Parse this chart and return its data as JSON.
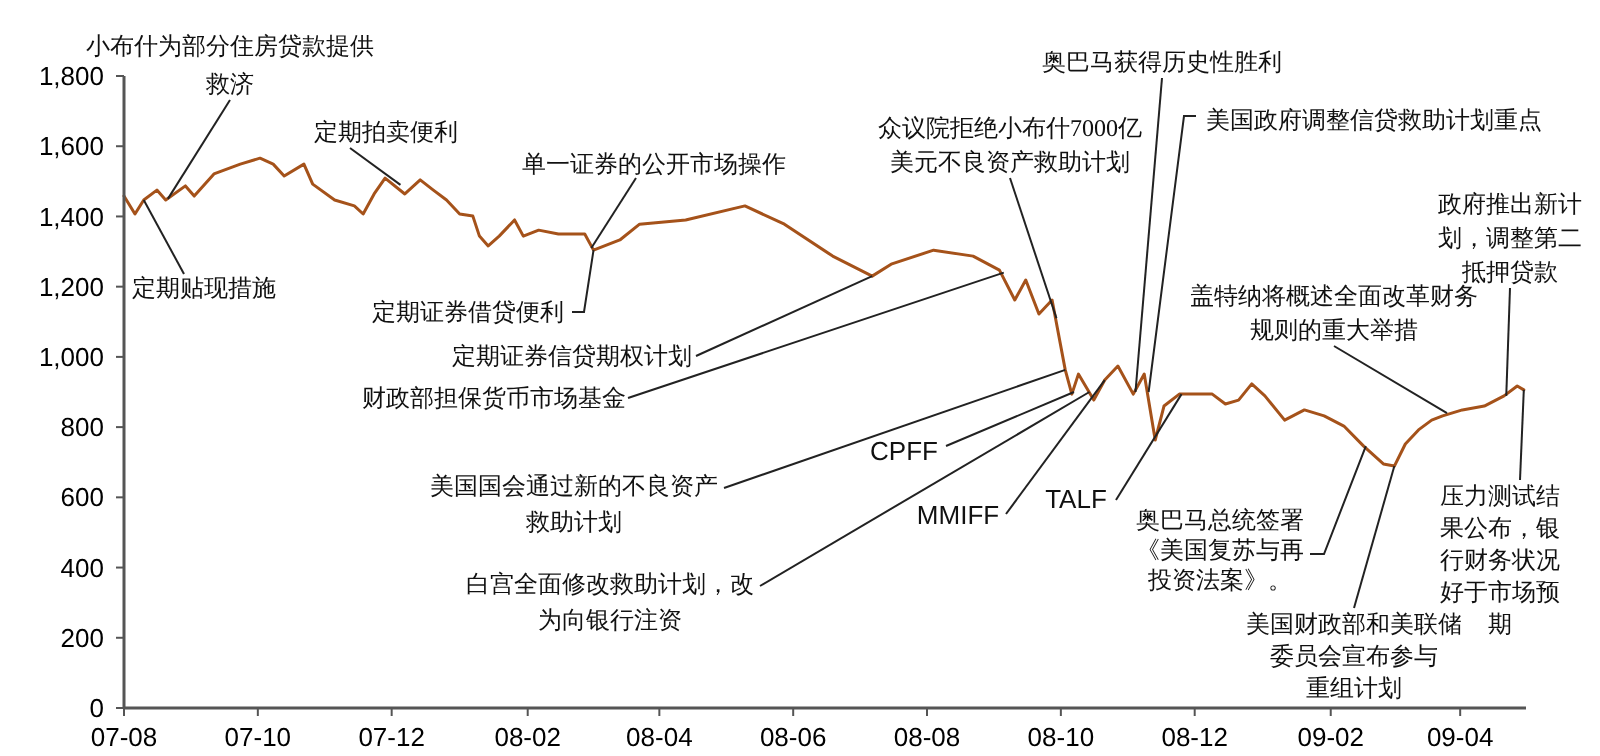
{
  "chart_data": {
    "type": "line",
    "x": [
      "2007-08-01",
      "2007-08-06",
      "2007-08-10",
      "2007-08-16",
      "2007-08-20",
      "2007-08-29",
      "2007-09-02",
      "2007-09-11",
      "2007-09-23",
      "2007-10-02",
      "2007-10-08",
      "2007-10-13",
      "2007-10-22",
      "2007-10-26",
      "2007-11-05",
      "2007-11-14",
      "2007-11-18",
      "2007-11-23",
      "2007-11-28",
      "2007-12-07",
      "2007-12-14",
      "2007-12-20",
      "2007-12-26",
      "2008-01-01",
      "2008-01-07",
      "2008-01-10",
      "2008-01-14",
      "2008-01-19",
      "2008-01-26",
      "2008-01-30",
      "2008-02-06",
      "2008-02-15",
      "2008-02-27",
      "2008-03-02",
      "2008-03-14",
      "2008-03-23",
      "2008-04-13",
      "2008-05-10",
      "2008-05-28",
      "2008-06-19",
      "2008-07-07",
      "2008-07-16",
      "2008-08-04",
      "2008-08-22",
      "2008-09-03",
      "2008-09-10",
      "2008-09-15",
      "2008-09-21",
      "2008-09-27",
      "2008-10-03",
      "2008-10-06",
      "2008-10-09",
      "2008-10-16",
      "2008-10-21",
      "2008-10-27",
      "2008-11-03",
      "2008-11-08",
      "2008-11-13",
      "2008-11-17",
      "2008-11-24",
      "2008-11-30",
      "2008-12-09",
      "2008-12-15",
      "2008-12-21",
      "2008-12-27",
      "2009-01-02",
      "2009-01-11",
      "2009-01-20",
      "2009-01-29",
      "2009-02-07",
      "2009-02-16",
      "2009-02-25",
      "2009-03-02",
      "2009-03-07",
      "2009-03-13",
      "2009-03-19",
      "2009-03-24",
      "2009-04-02",
      "2009-04-12",
      "2009-04-21",
      "2009-04-27",
      "2009-04-30"
    ],
    "series": [
      {
        "color": "#a5521a",
        "values": [
          1458,
          1407,
          1447,
          1475,
          1447,
          1487,
          1458,
          1521,
          1549,
          1566,
          1549,
          1515,
          1549,
          1492,
          1447,
          1430,
          1407,
          1464,
          1509,
          1464,
          1504,
          1475,
          1447,
          1407,
          1401,
          1344,
          1316,
          1344,
          1390,
          1344,
          1361,
          1350,
          1350,
          1304,
          1333,
          1378,
          1390,
          1430,
          1378,
          1287,
          1230,
          1265,
          1304,
          1287,
          1247,
          1162,
          1219,
          1122,
          1162,
          963,
          894,
          951,
          877,
          934,
          974,
          894,
          951,
          763,
          860,
          894,
          894,
          894,
          866,
          877,
          923,
          889,
          820,
          849,
          832,
          803,
          746,
          695,
          689,
          752,
          792,
          820,
          832,
          849,
          860,
          889,
          917,
          906
        ]
      }
    ],
    "xlim": [
      "2007-08-01",
      "2009-05-01"
    ],
    "xticks": [
      {
        "value": "2007-08-01",
        "label": "07-08"
      },
      {
        "value": "2007-10-01",
        "label": "07-10"
      },
      {
        "value": "2007-12-01",
        "label": "07-12"
      },
      {
        "value": "2008-02-01",
        "label": "08-02"
      },
      {
        "value": "2008-04-01",
        "label": "08-04"
      },
      {
        "value": "2008-06-01",
        "label": "08-06"
      },
      {
        "value": "2008-08-01",
        "label": "08-08"
      },
      {
        "value": "2008-10-01",
        "label": "08-10"
      },
      {
        "value": "2008-12-01",
        "label": "08-12"
      },
      {
        "value": "2009-02-01",
        "label": "09-02"
      },
      {
        "value": "2009-04-01",
        "label": "09-04"
      }
    ],
    "ylim": [
      0,
      1800
    ],
    "yticks": [
      0,
      200,
      400,
      600,
      800,
      {
        "value": 1000,
        "label": "1,000"
      },
      {
        "value": 1200,
        "label": "1,200"
      },
      {
        "value": 1400,
        "label": "1,400"
      },
      {
        "value": 1600,
        "label": "1,600"
      },
      {
        "value": 1800,
        "label": "1,800"
      }
    ],
    "annotations": [
      {
        "text": "小布什为部分住房贷款提供救济",
        "x": "2007-08-21",
        "y": 1450
      },
      {
        "text": "定期拍卖便利",
        "x": "2007-12-05",
        "y": 1490
      },
      {
        "text": "定期贴现措施",
        "x": "2007-08-10",
        "y": 1447
      },
      {
        "text": "单一证券的公开市场操作",
        "x": "2008-03-01",
        "y": 1310
      },
      {
        "text": "定期证券借贷便利",
        "x": "2008-03-02",
        "y": 1304
      },
      {
        "text": "定期证券信贷期权计划",
        "x": "2008-07-07",
        "y": 1230
      },
      {
        "text": "财政部担保货币市场基金",
        "x": "2008-09-05",
        "y": 1240
      },
      {
        "text": "CPFF",
        "x": "2008-10-07",
        "y": 900
      },
      {
        "text": "美国国会通过新的不良资产救助计划",
        "x": "2008-10-03",
        "y": 963
      },
      {
        "text": "白宫全面修改救助计划，改为向银行注资",
        "x": "2008-10-14",
        "y": 900
      },
      {
        "text": "MMIFF",
        "x": "2008-10-21",
        "y": 934
      },
      {
        "text": "TALF",
        "x": "2008-11-25",
        "y": 894
      },
      {
        "text": "奥巴马获得历史性胜利",
        "x": "2008-11-04",
        "y": 900
      },
      {
        "text": "美国政府调整信贷救助计划重点",
        "x": "2008-11-10",
        "y": 900
      },
      {
        "text": "盖特纳将概述全面改革财务规则的重大举措",
        "x": "2009-03-26",
        "y": 840
      },
      {
        "text": "政府推出新计划，调整第二抵押贷款",
        "x": "2009-04-22",
        "y": 889
      },
      {
        "text": "压力测试结果公布，银行财务状况好于市场预期",
        "x": "2009-04-30",
        "y": 906
      },
      {
        "text": "奥巴马总统签署《美国复苏与再投资法案》。",
        "x": "2009-02-17",
        "y": 746
      },
      {
        "text": "美国财政部和美联储委员会宣布参与重组计划",
        "x": "2009-03-02",
        "y": 689
      },
      {
        "text": "众议院拒绝小布什7000亿美元不良资产救助计划",
        "x": "2008-09-29",
        "y": 1110
      }
    ]
  }
}
